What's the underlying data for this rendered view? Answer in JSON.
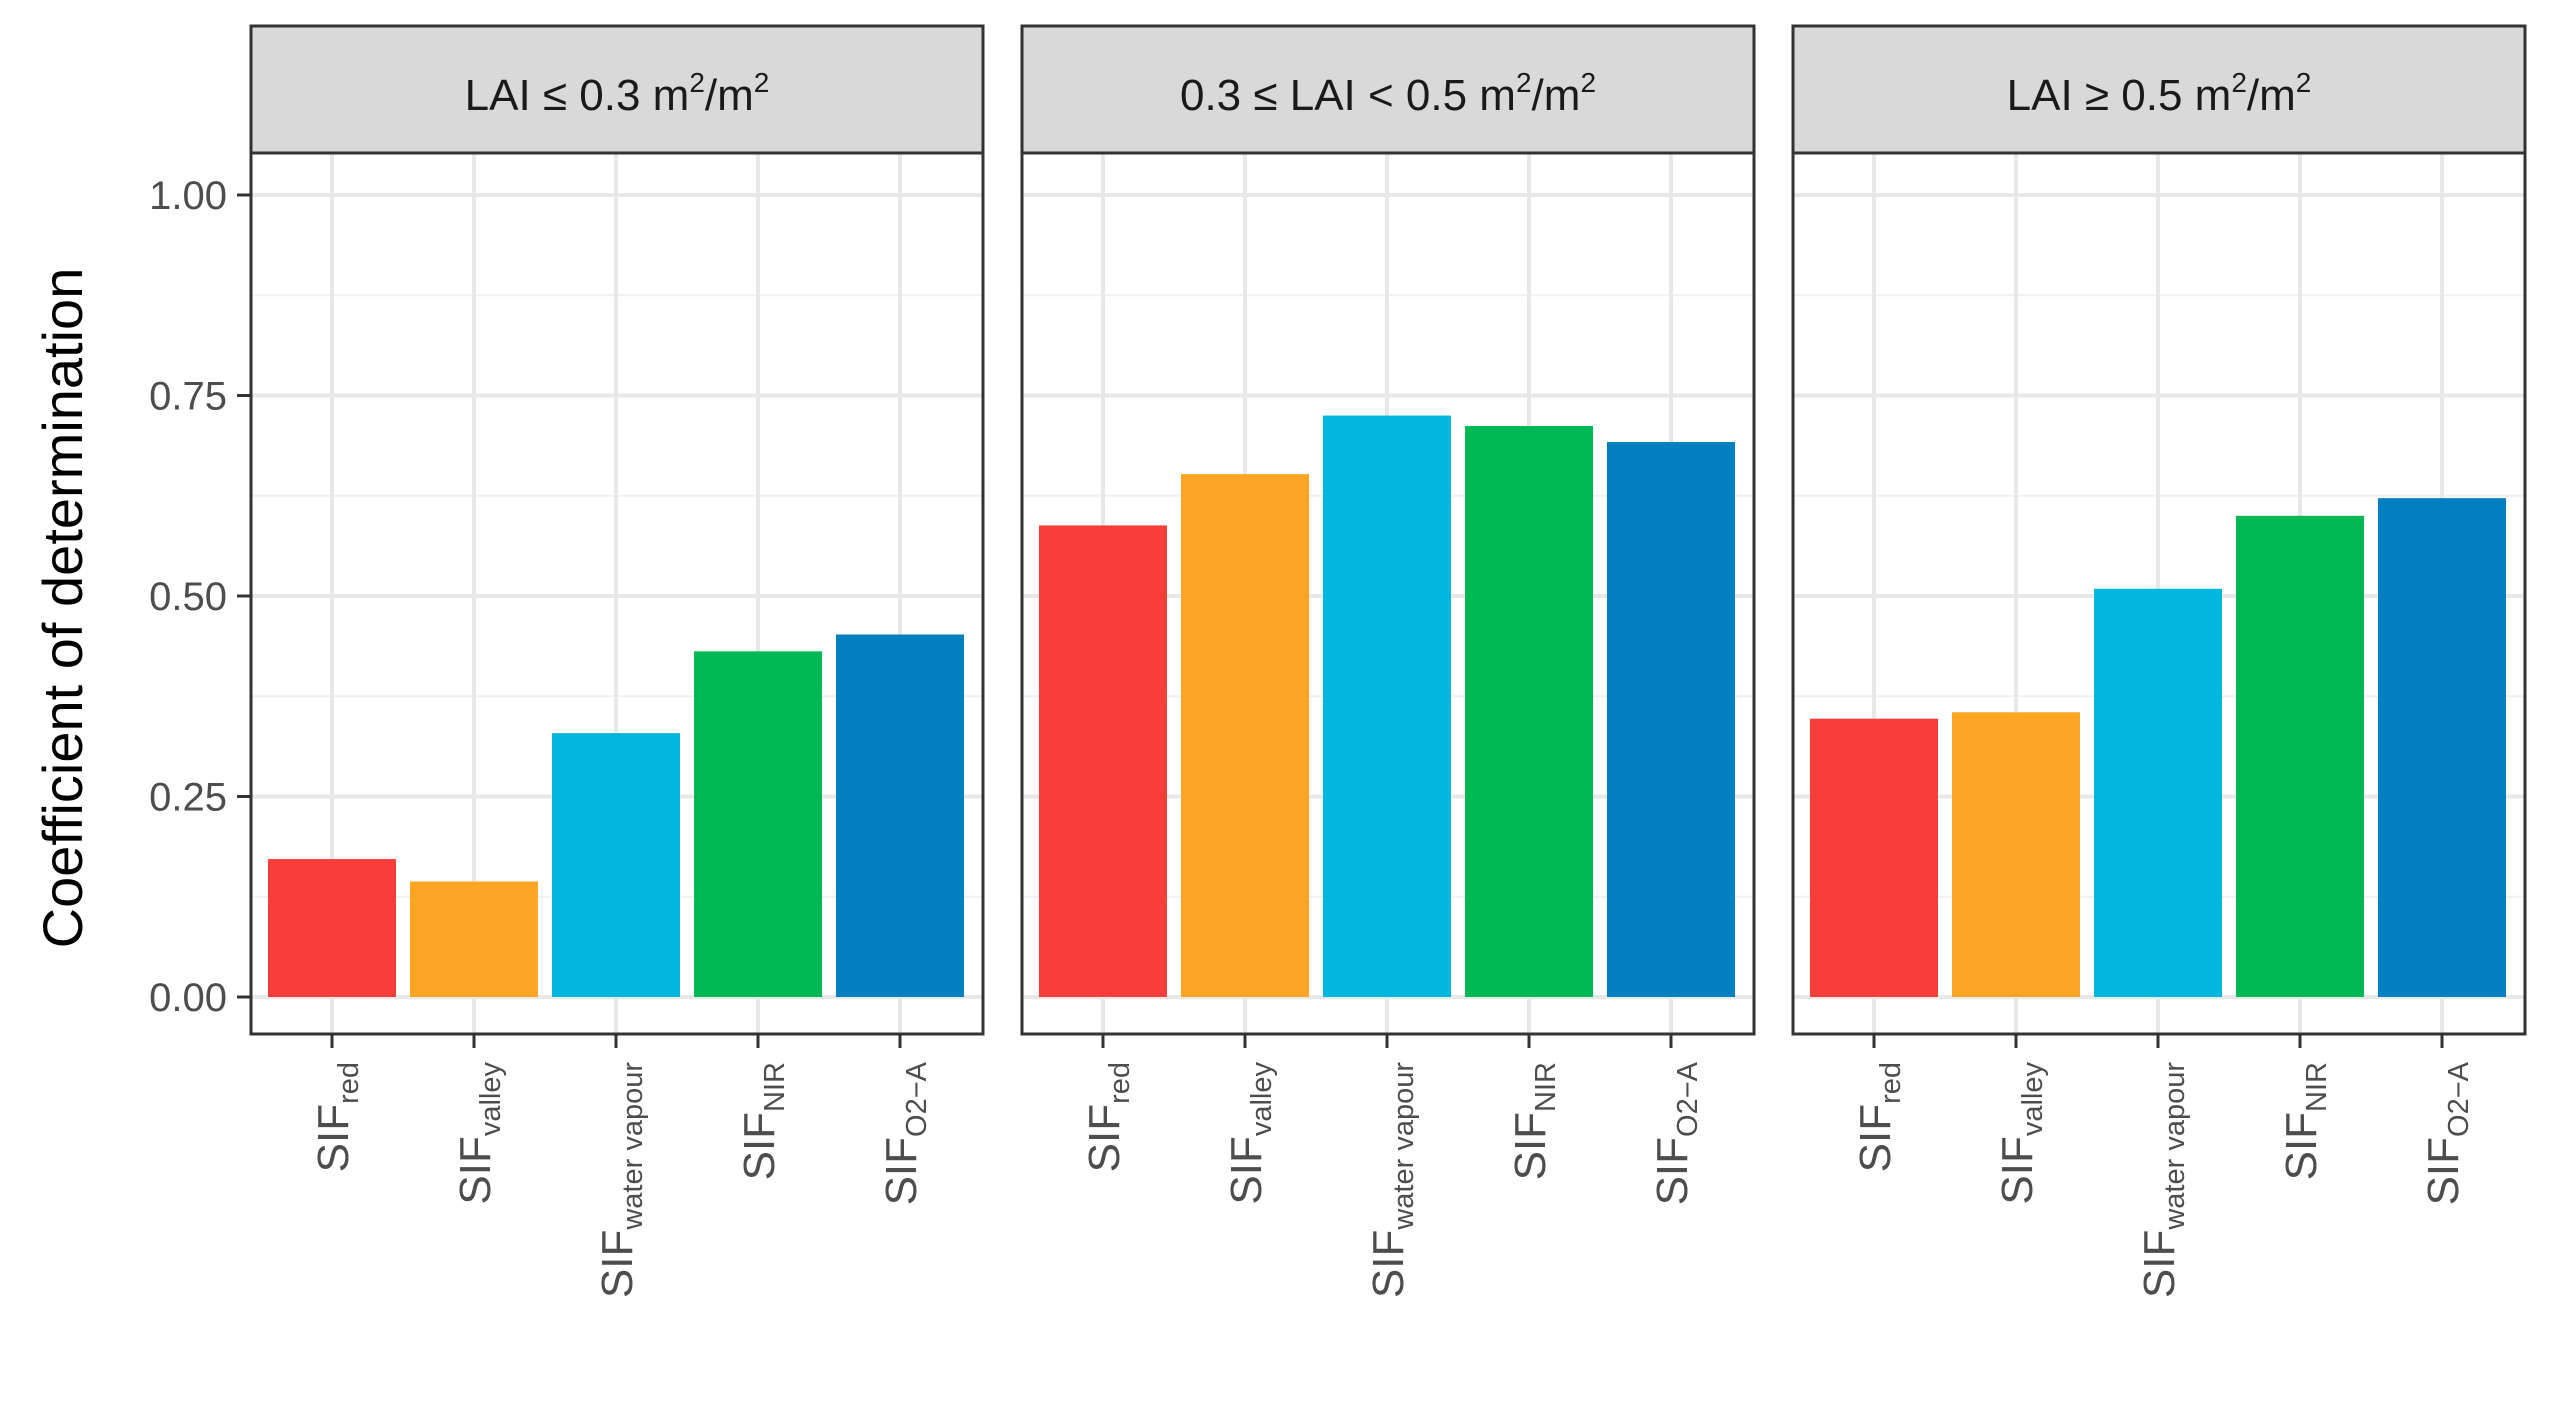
{
  "chart_data": {
    "type": "bar",
    "ylabel": "Coefficient of determination",
    "ylim": [
      -0.04,
      1.05
    ],
    "yticks": [
      "0.00",
      "0.25",
      "0.50",
      "0.75",
      "1.00"
    ],
    "grid": true,
    "categories": [
      {
        "main": "SIF",
        "sub": "red"
      },
      {
        "main": "SIF",
        "sub": "valley"
      },
      {
        "main": "SIF",
        "sub": "water vapour"
      },
      {
        "main": "SIF",
        "sub": "NIR"
      },
      {
        "main": "SIF",
        "sub": "O2−A"
      }
    ],
    "colors": [
      "#f53d3a",
      "#ffa526",
      "#00b7de",
      "#00b854",
      "#0080c0"
    ],
    "panels": [
      {
        "title": "LAI ≤ 0.3 m",
        "values": [
          0.172,
          0.144,
          0.329,
          0.431,
          0.452
        ]
      },
      {
        "title": "0.3 ≤ LAI  < 0.5 m",
        "values": [
          0.588,
          0.652,
          0.725,
          0.712,
          0.692
        ]
      },
      {
        "title": "LAI ≥ 0.5 m",
        "values": [
          0.347,
          0.355,
          0.509,
          0.6,
          0.622
        ]
      }
    ],
    "unit_sup": "2",
    "unit_slash": "/m",
    "unit_sup2": "2"
  }
}
